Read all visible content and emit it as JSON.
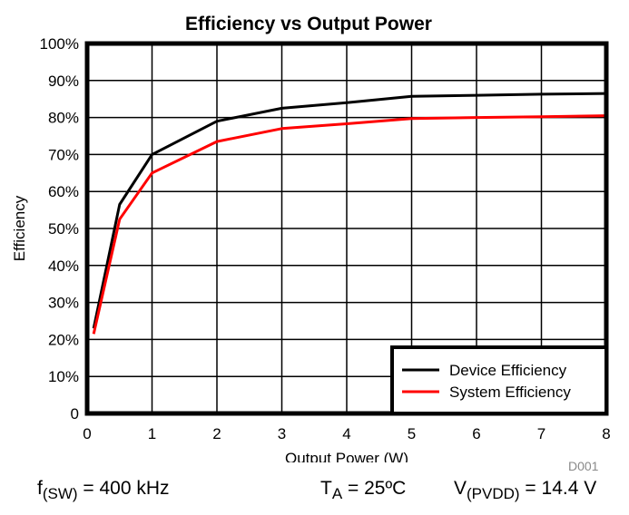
{
  "chart_data": {
    "type": "line",
    "title": "Efficiency vs Output Power",
    "xlabel": "Output Power (W)",
    "ylabel": "Efficiency",
    "xlim": [
      0,
      8
    ],
    "ylim": [
      0,
      100
    ],
    "grid": true,
    "x_ticks": [
      "0",
      "1",
      "2",
      "3",
      "4",
      "5",
      "6",
      "7",
      "8"
    ],
    "y_ticks": [
      "0",
      "10%",
      "20%",
      "30%",
      "40%",
      "50%",
      "60%",
      "70%",
      "80%",
      "90%",
      "100%"
    ],
    "legend_position": "bottom-right",
    "series": [
      {
        "name": "Device Efficiency",
        "color": "#000000",
        "x": [
          0.1,
          0.5,
          1,
          2,
          3,
          4,
          5,
          6,
          7,
          8
        ],
        "y": [
          23,
          56.5,
          70,
          79,
          82.5,
          84,
          85.7,
          86,
          86.3,
          86.5
        ]
      },
      {
        "name": "System Efficiency",
        "color": "#ff0000",
        "x": [
          0.1,
          0.5,
          1,
          2,
          3,
          4,
          5,
          6,
          7,
          8
        ],
        "y": [
          21.5,
          52.5,
          65,
          73.5,
          77,
          78.3,
          79.7,
          80,
          80.2,
          80.5
        ]
      }
    ]
  },
  "footer": {
    "fsw_main": "f",
    "fsw_sub": "(SW)",
    "fsw_value": " = 400 kHz",
    "ta_main": "T",
    "ta_sub": "A",
    "ta_value": " = 25ºC",
    "vpvdd_main": "V",
    "vpvdd_sub": "(PVDD)",
    "vpvdd_value": " = 14.4 V"
  },
  "figure_code": "D001"
}
